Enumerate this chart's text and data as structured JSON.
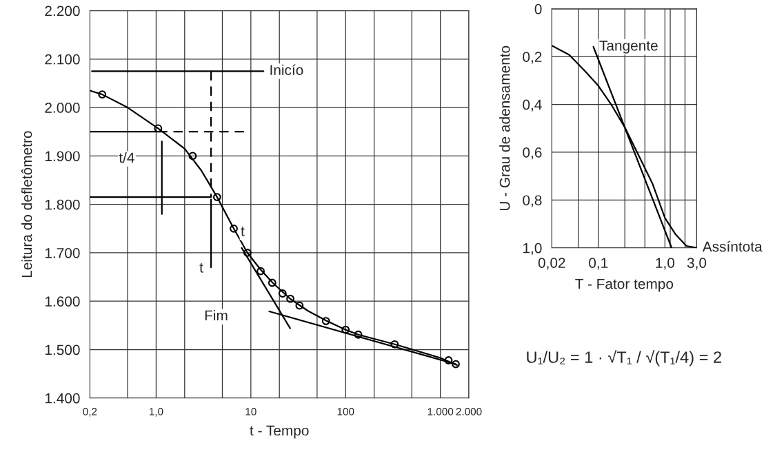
{
  "chart_data": [
    {
      "type": "scatter",
      "xlabel": "t - Tempo",
      "ylabel": "Leitura do defletômetro",
      "log": "x",
      "xlim": [
        0.2,
        2000
      ],
      "ylim": [
        1400,
        2200
      ],
      "xticks": [
        {
          "value": 0.2,
          "label": "0,2"
        },
        {
          "value": 0.5,
          "label": null
        },
        {
          "value": 1,
          "label": "1,0"
        },
        {
          "value": 2,
          "label": null
        },
        {
          "value": 5,
          "label": null
        },
        10,
        {
          "value": 20,
          "label": null
        },
        {
          "value": 50,
          "label": null
        },
        100,
        {
          "value": 200,
          "label": null
        },
        {
          "value": 500,
          "label": null
        },
        {
          "value": 1000,
          "label": "1.000"
        },
        {
          "value": 2000,
          "label": "2.000"
        }
      ],
      "yticks": [
        {
          "value": 1400,
          "label": "1.400"
        },
        {
          "value": 1500,
          "label": "1.500"
        },
        {
          "value": 1600,
          "label": "1.600"
        },
        {
          "value": 1700,
          "label": "1.700"
        },
        {
          "value": 1800,
          "label": "1.800"
        },
        {
          "value": 1900,
          "label": "1.900"
        },
        {
          "value": 2000,
          "label": "2.000"
        },
        {
          "value": 2100,
          "label": "2.100"
        },
        {
          "value": 2200,
          "label": "2.200"
        }
      ],
      "grid": true,
      "series": [
        {
          "type": "line",
          "color": "#000000",
          "x": [
            0.2,
            0.27,
            0.5,
            1.05,
            2,
            3,
            4.4,
            6.6,
            9.2,
            12.7,
            17,
            26,
            40,
            62,
            100,
            136,
            330,
            1000,
            1500
          ],
          "values": [
            2035,
            2027,
            2000,
            1957,
            1915,
            1870,
            1815,
            1750,
            1700,
            1665,
            1638,
            1605,
            1580,
            1560,
            1541,
            1531,
            1511,
            1483,
            1468
          ]
        },
        {
          "type": "line",
          "color": "#000000",
          "x": [
            8,
            26
          ],
          "values": [
            1710,
            1544
          ]
        },
        {
          "type": "line",
          "color": "#000000",
          "x": [
            15.6,
            1455
          ],
          "values": [
            1579,
            1470
          ]
        },
        {
          "type": "line",
          "color": "#000000",
          "x": [
            0.21,
            13.6
          ],
          "values": [
            2075,
            2075
          ]
        },
        {
          "type": "line",
          "color": "#000000",
          "x": [
            0.2,
            1.05
          ],
          "values": [
            1950,
            1950
          ]
        },
        {
          "type": "line",
          "color": "#000000",
          "line_style": "dashed",
          "x": [
            1.05,
            8.5
          ],
          "values": [
            1950,
            1950
          ]
        },
        {
          "type": "line",
          "color": "#000000",
          "x": [
            0.2,
            3.8
          ],
          "values": [
            1815,
            1815
          ]
        },
        {
          "type": "line",
          "color": "#000000",
          "line_style": "dashed",
          "x": [
            3.8,
            3.8
          ],
          "values": [
            2075,
            1815
          ]
        },
        {
          "type": "line",
          "color": "#000000",
          "x": [
            1.15,
            1.15
          ],
          "values": [
            1780,
            1930
          ]
        },
        {
          "type": "line",
          "color": "#000000",
          "x": [
            3.8,
            3.8
          ],
          "values": [
            1670,
            1810
          ]
        },
        {
          "type": "scatter",
          "color": "#000000",
          "marker": "circle",
          "x": [
            0.27,
            1.05,
            2.43,
            4.4,
            6.6,
            9.2,
            12.7,
            16.8,
            21.6,
            26.1,
            32.6,
            62,
            100,
            136,
            329,
            1220,
            1455
          ],
          "values": [
            2027,
            1957,
            1900,
            1815,
            1750,
            1700,
            1662,
            1638,
            1616,
            1605,
            1591,
            1559,
            1541,
            1531,
            1511,
            1478,
            1470
          ]
        }
      ],
      "annotations": [
        {
          "text": "Inicío",
          "x": 13.6,
          "y": 2075
        },
        {
          "text": "t/4",
          "x": 0.49,
          "y": 1894
        },
        {
          "text": "t",
          "x": 3.0,
          "y": 1667
        },
        {
          "text": "t",
          "x": 8.2,
          "y": 1742
        },
        {
          "text": "Fim",
          "x": 4.3,
          "y": 1568
        }
      ]
    },
    {
      "type": "line",
      "xlabel": "T - Fator tempo",
      "ylabel": "U - Grau de adensamento",
      "log": "x",
      "xlim": [
        0.02,
        3.0
      ],
      "ylim": [
        1.0,
        0
      ],
      "xticks": [
        {
          "value": 0.02,
          "label": "0,02"
        },
        {
          "value": 0.05,
          "label": null
        },
        {
          "value": 0.1,
          "label": "0,1"
        },
        {
          "value": 0.25,
          "label": null
        },
        {
          "value": 0.5,
          "label": null
        },
        {
          "value": 1.0,
          "label": "1,0"
        },
        {
          "value": 1.2,
          "label": null
        },
        {
          "value": 2.0,
          "label": null
        },
        {
          "value": 3.0,
          "label": "3,0"
        }
      ],
      "yticks": [
        0,
        {
          "value": 0.2,
          "label": "0,2"
        },
        {
          "value": 0.4,
          "label": "0,4"
        },
        {
          "value": 0.6,
          "label": "0,6"
        },
        {
          "value": 0.8,
          "label": "0,8"
        },
        {
          "value": 1.0,
          "label": "1,0"
        }
      ],
      "grid": true,
      "series": [
        {
          "color": "#000000",
          "x": [
            0.02,
            0.0364,
            0.0628,
            0.1,
            0.159,
            0.254,
            0.406,
            0.649,
            1.0,
            1.43,
            2.1,
            3.0
          ],
          "values": [
            0.154,
            0.192,
            0.26,
            0.322,
            0.404,
            0.5,
            0.615,
            0.731,
            0.875,
            0.942,
            0.992,
            1.0
          ]
        },
        {
          "color": "#000000",
          "x": [
            0.0843,
            1.26
          ],
          "values": [
            0.159,
            1.0
          ]
        }
      ],
      "annotations": [
        {
          "text": "Tangente",
          "x": 0.0843,
          "y": 0.159
        },
        {
          "text": "Assíntota",
          "x": 3.0,
          "y": 1.0
        },
        "U₁/U₂ = 1 · √T₁ / √(T₁/4) = 2"
      ]
    }
  ]
}
